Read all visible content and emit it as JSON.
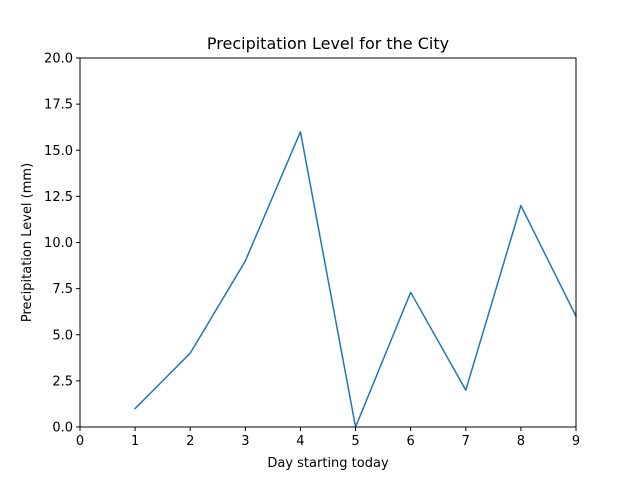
{
  "chart_data": {
    "type": "line",
    "title": "Precipitation Level for the City",
    "xlabel": "Day starting today",
    "ylabel": "Precipitation Level (mm)",
    "xlim": [
      0,
      9
    ],
    "ylim": [
      0,
      20
    ],
    "x_ticks": [
      "0",
      "1",
      "2",
      "3",
      "4",
      "5",
      "6",
      "7",
      "8",
      "9"
    ],
    "y_ticks": [
      "0.0",
      "2.5",
      "5.0",
      "7.5",
      "10.0",
      "12.5",
      "15.0",
      "17.5",
      "20.0"
    ],
    "grid": false,
    "x": [
      1,
      2,
      3,
      4,
      5,
      6,
      7,
      8,
      9
    ],
    "series": [
      {
        "values": [
          1,
          4,
          9,
          16,
          0,
          7.3,
          2,
          12,
          6
        ],
        "color": "#1f77b4"
      }
    ]
  }
}
